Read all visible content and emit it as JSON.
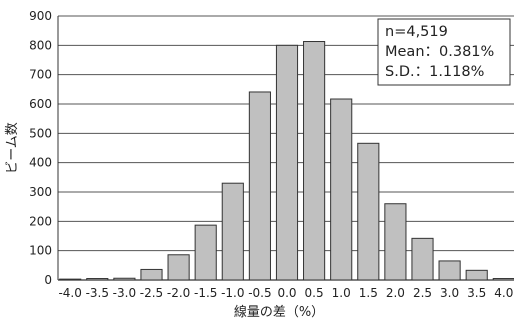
{
  "chart_data": {
    "type": "bar",
    "categories": [
      "-4.0",
      "-3.5",
      "-3.0",
      "-2.5",
      "-2.0",
      "-1.5",
      "-1.0",
      "-0.5",
      "0.0",
      "0.5",
      "1.0",
      "1.5",
      "2.0",
      "2.5",
      "3.0",
      "3.5",
      "4.0"
    ],
    "values": [
      3,
      5,
      6,
      36,
      86,
      187,
      330,
      641,
      800,
      813,
      617,
      466,
      260,
      142,
      65,
      33,
      5
    ],
    "xlabel": "線量の差（%）",
    "ylabel": "ビーム数",
    "ylim": [
      0,
      900
    ],
    "yticks": [
      0,
      100,
      200,
      300,
      400,
      500,
      600,
      700,
      800,
      900
    ],
    "grid": true,
    "bar_color": "#c0c0c0",
    "stats_box": {
      "position": "top-right",
      "lines": [
        "n=4,519",
        "Mean：0.381%",
        "S.D.：1.118%"
      ]
    }
  }
}
